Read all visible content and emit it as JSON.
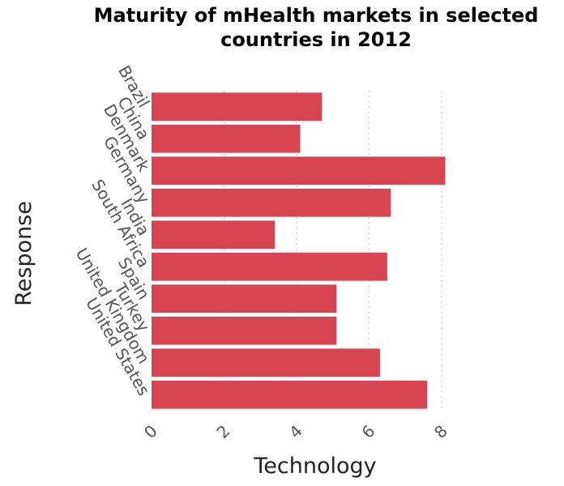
{
  "chart_data": {
    "type": "bar",
    "orientation": "horizontal",
    "title": "Maturity of mHealth markets in selected countries in 2012",
    "xlabel": "Technology",
    "ylabel": "Response",
    "categories": [
      "Brazil",
      "China",
      "Denmark",
      "Germany",
      "India",
      "South Africa",
      "Spain",
      "Turkey",
      "United Kingdom",
      "United States"
    ],
    "values": [
      4.7,
      4.1,
      8.1,
      6.6,
      3.4,
      6.5,
      5.1,
      5.1,
      6.3,
      7.6
    ],
    "xlim": [
      0,
      8
    ],
    "xticks": [
      "0",
      "2",
      "4",
      "6",
      "8"
    ],
    "grid": "vertical dotted",
    "bar_color": "#d94452",
    "legend": "none"
  }
}
